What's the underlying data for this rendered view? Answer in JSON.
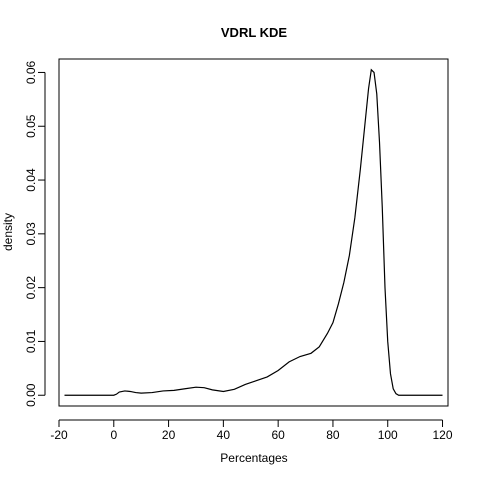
{
  "chart_data": {
    "type": "line",
    "title": "VDRL  KDE",
    "xlabel": "Percentages",
    "ylabel": "density",
    "xlim": [
      -20,
      122
    ],
    "ylim": [
      -0.002,
      0.0625
    ],
    "x_ticks": [
      -20,
      0,
      20,
      40,
      60,
      80,
      100,
      120
    ],
    "y_ticks": [
      0.0,
      0.01,
      0.02,
      0.03,
      0.04,
      0.05,
      0.06
    ],
    "y_tick_labels": [
      "0.00",
      "0.01",
      "0.02",
      "0.03",
      "0.04",
      "0.05",
      "0.06"
    ],
    "grid": false,
    "series": [
      {
        "x": [
          -18,
          -10,
          0,
          1,
          2,
          4,
          6,
          8,
          10,
          14,
          18,
          22,
          26,
          30,
          33,
          36,
          40,
          44,
          48,
          52,
          56,
          60,
          64,
          68,
          72,
          75,
          78,
          80,
          82,
          84,
          86,
          88,
          90,
          92,
          93,
          94,
          95,
          96,
          97,
          98,
          99,
          100,
          101,
          102,
          103,
          104,
          106,
          110,
          120
        ],
        "y": [
          0.0,
          0.0,
          0.0,
          0.0002,
          0.0006,
          0.0008,
          0.0007,
          0.0005,
          0.0004,
          0.0005,
          0.0008,
          0.0009,
          0.0012,
          0.0015,
          0.0014,
          0.001,
          0.0007,
          0.0011,
          0.002,
          0.0027,
          0.0034,
          0.0046,
          0.0062,
          0.0072,
          0.0078,
          0.009,
          0.0115,
          0.0135,
          0.017,
          0.021,
          0.026,
          0.033,
          0.042,
          0.052,
          0.057,
          0.0605,
          0.06,
          0.056,
          0.047,
          0.035,
          0.02,
          0.01,
          0.004,
          0.0012,
          0.0003,
          0.0,
          0.0,
          0.0,
          0.0
        ],
        "color": "#000000"
      }
    ]
  }
}
